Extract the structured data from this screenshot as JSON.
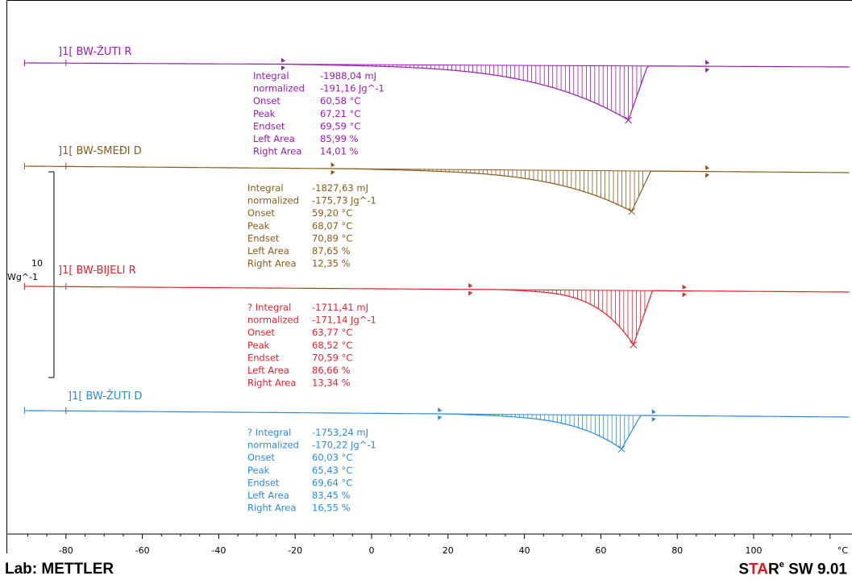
{
  "footer": {
    "lab": "Lab: METTLER",
    "brand_s": "S",
    "brand_t": "T",
    "brand_a": "A",
    "brand_r": "R",
    "brand_sup": "e",
    "brand_tail": " SW 9.01"
  },
  "chart_data": {
    "type": "line",
    "xlabel": "°C",
    "xlim": [
      -90,
      125
    ],
    "xticks": [
      -80,
      -60,
      -40,
      -20,
      0,
      20,
      40,
      60,
      80,
      100
    ],
    "ylabel_top": "10",
    "ylabel_unit": "Wg^-1",
    "series": [
      {
        "name": "]1[ BW-ŽUTI R",
        "color": "#9b1ab2",
        "peak_x": 67.21,
        "limits": [
          -23,
          88
        ],
        "results": [
          {
            "label": "Integral",
            "value": "-1988,04 mJ"
          },
          {
            "label": "  normalized",
            "value": "-191,16 Jg^-1"
          },
          {
            "label": "Onset",
            "value": "60,58 °C"
          },
          {
            "label": "Peak",
            "value": "67,21 °C"
          },
          {
            "label": "Endset",
            "value": "69,59 °C"
          },
          {
            "label": "Left Area",
            "value": "85,99 %"
          },
          {
            "label": "Right Area",
            "value": "14,01 %"
          }
        ]
      },
      {
        "name": "]1[ BW-SMEĐI D",
        "color": "#8a5a1a",
        "peak_x": 68.07,
        "limits": [
          -10,
          88
        ],
        "results": [
          {
            "label": "Integral",
            "value": "-1827,63 mJ"
          },
          {
            "label": "  normalized",
            "value": "-175,73 Jg^-1"
          },
          {
            "label": "Onset",
            "value": "59,20 °C"
          },
          {
            "label": "Peak",
            "value": "68,07 °C"
          },
          {
            "label": "Endset",
            "value": "70,89 °C"
          },
          {
            "label": "Left Area",
            "value": "87,65 %"
          },
          {
            "label": "Right Area",
            "value": "12,35 %"
          }
        ]
      },
      {
        "name": "]1[ BW-BIJELI R",
        "color": "#e8202a",
        "peak_x": 68.52,
        "limits": [
          26,
          82
        ],
        "results": [
          {
            "label": "? Integral",
            "value": "-1711,41 mJ"
          },
          {
            "label": "  normalized",
            "value": "-171,14 Jg^-1"
          },
          {
            "label": "Onset",
            "value": "63,77 °C"
          },
          {
            "label": "Peak",
            "value": "68,52 °C"
          },
          {
            "label": "Endset",
            "value": "70,59 °C"
          },
          {
            "label": "Left Area",
            "value": "86,66 %"
          },
          {
            "label": "Right Area",
            "value": "13,34 %"
          }
        ]
      },
      {
        "name": "]1[ BW-ŽUTI D",
        "color": "#2a8be0",
        "peak_x": 65.43,
        "limits": [
          18,
          74
        ],
        "results": [
          {
            "label": "? Integral",
            "value": "-1753,24 mJ"
          },
          {
            "label": "  normalized",
            "value": "-170,22 Jg^-1"
          },
          {
            "label": "Onset",
            "value": "60,03 °C"
          },
          {
            "label": "Peak",
            "value": "65,43 °C"
          },
          {
            "label": "Endset",
            "value": "69,64 °C"
          },
          {
            "label": "Left Area",
            "value": "83,45 %"
          },
          {
            "label": "Right Area",
            "value": "16,55 %"
          }
        ]
      }
    ]
  }
}
